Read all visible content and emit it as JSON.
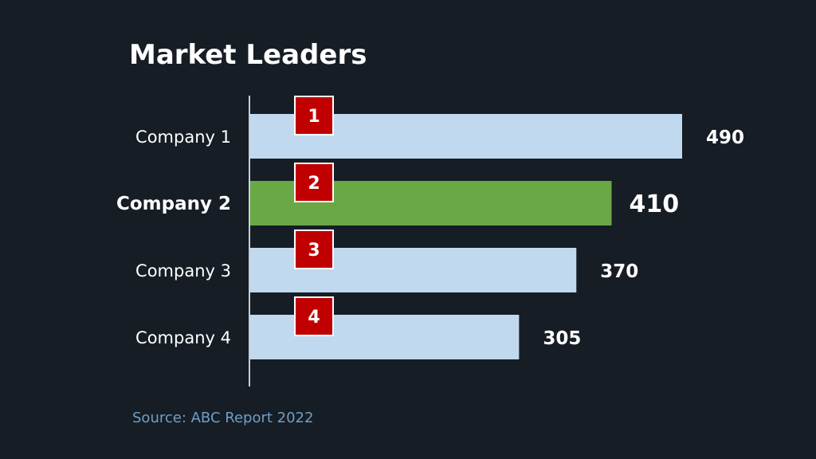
{
  "chart_data": {
    "type": "bar",
    "orientation": "horizontal",
    "title": "Market Leaders",
    "categories": [
      "Company 1",
      "Company 2",
      "Company 3",
      "Company 4"
    ],
    "values": [
      490,
      410,
      370,
      305
    ],
    "ranks": [
      "1",
      "2",
      "3",
      "4"
    ],
    "highlight_index": 1,
    "xlim": [
      0,
      490
    ],
    "grid": false,
    "legend": "none",
    "colors": {
      "background": "#161d25",
      "bar": "#c0d9ef",
      "highlight": "#6aa745",
      "rank_badge": "#c00000",
      "source_text": "#6f9fc8"
    },
    "source": "Source: ABC Report 2022"
  }
}
